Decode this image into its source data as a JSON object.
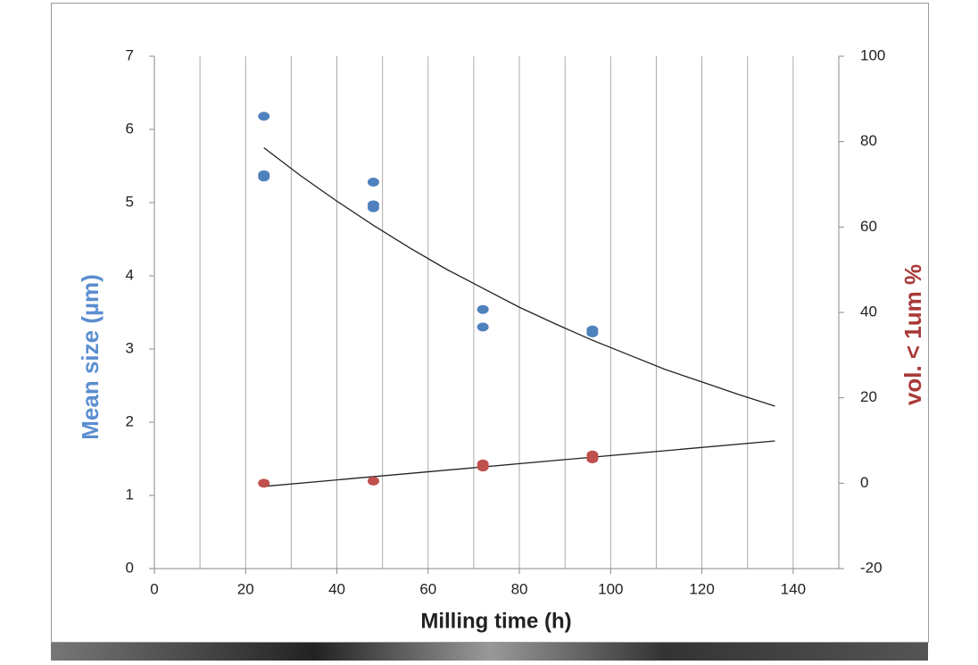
{
  "chart_data": {
    "type": "scatter",
    "xlabel": "Milling time (h)",
    "ylabel": "Mean size (µm)",
    "y2label": "vol. < 1um  %",
    "xlim": [
      0,
      150
    ],
    "xticks": [
      0,
      20,
      40,
      60,
      80,
      100,
      120,
      140
    ],
    "xgrid_lines": [
      10,
      20,
      30,
      40,
      50,
      60,
      70,
      80,
      90,
      100,
      110,
      120,
      130,
      140
    ],
    "ylim": [
      0,
      7
    ],
    "yticks": [
      0,
      1,
      2,
      3,
      4,
      5,
      6,
      7
    ],
    "y2lim": [
      -20,
      100
    ],
    "y2ticks": [
      -20,
      0,
      20,
      40,
      60,
      80,
      100
    ],
    "series": [
      {
        "name": "Mean size",
        "color": "#4f81bd",
        "x": [
          24,
          24,
          24,
          48,
          48,
          48,
          72,
          72,
          96,
          96
        ],
        "values": [
          6.18,
          5.38,
          5.35,
          5.28,
          4.97,
          4.93,
          3.54,
          3.3,
          3.26,
          3.22
        ]
      },
      {
        "name": "vol. < 1um",
        "color": "#c0504d",
        "axis": "y2",
        "x": [
          24,
          48,
          72,
          72,
          96,
          96
        ],
        "values": [
          0,
          0.5,
          4.5,
          3.8,
          6.6,
          5.7
        ]
      }
    ],
    "trendlines": [
      {
        "color": "#222222",
        "x": [
          24,
          32,
          40,
          48,
          56,
          64,
          72,
          80,
          88,
          96,
          104,
          112,
          120,
          128,
          136
        ],
        "values": [
          5.75,
          5.37,
          5.02,
          4.69,
          4.38,
          4.09,
          3.83,
          3.57,
          3.34,
          3.12,
          2.92,
          2.72,
          2.55,
          2.38,
          2.22
        ]
      },
      {
        "color": "#222222",
        "axis": "y2",
        "x": [
          24,
          136
        ],
        "values": [
          -0.75,
          9.9
        ]
      }
    ]
  }
}
